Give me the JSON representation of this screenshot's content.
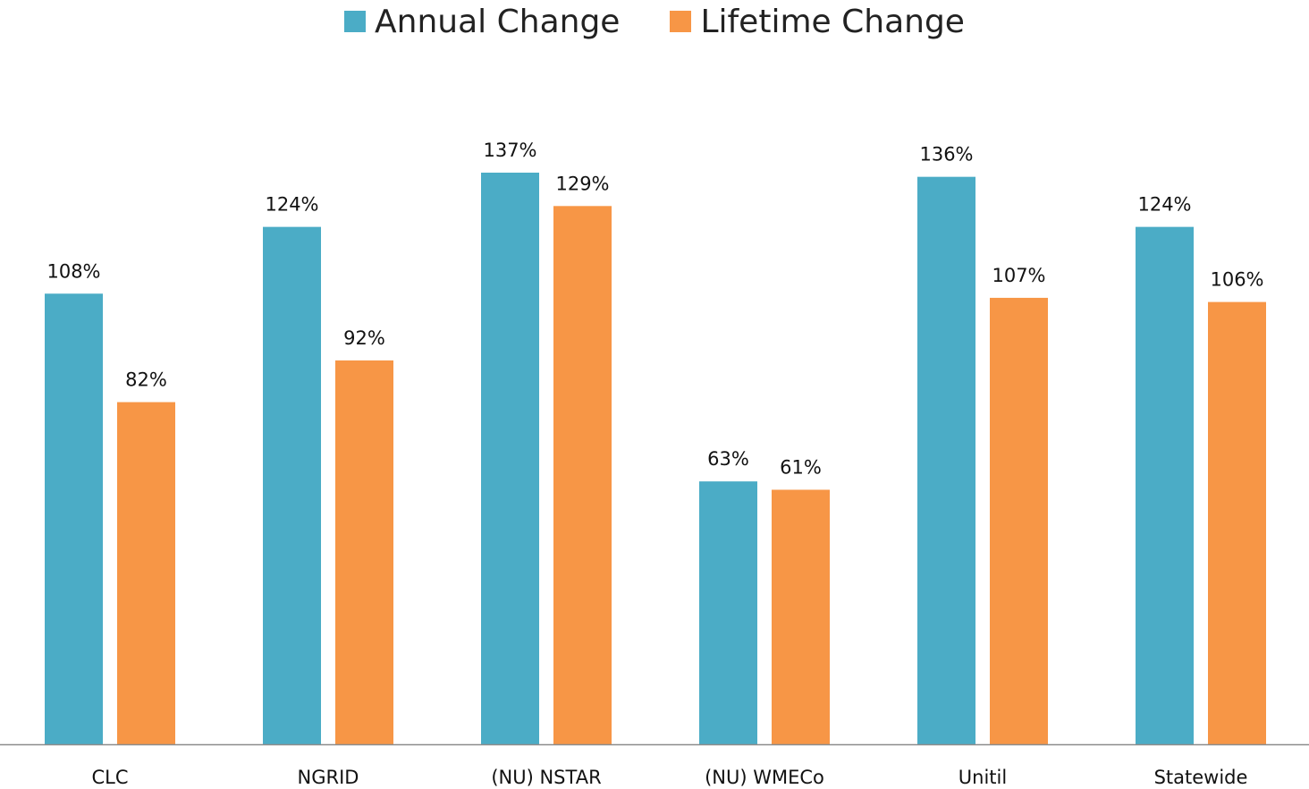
{
  "chart_data": {
    "type": "bar",
    "title": "",
    "xlabel": "",
    "ylabel": "",
    "categories": [
      "CLC",
      "NGRID",
      "(NU) NSTAR",
      "(NU) WMECo",
      "Unitil",
      "Statewide"
    ],
    "series": [
      {
        "name": "Annual Change",
        "color": "#4BACC6",
        "values": [
          108,
          124,
          137,
          63,
          136,
          124
        ],
        "labels": [
          "108%",
          "124%",
          "137%",
          "63%",
          "136%",
          "124%"
        ]
      },
      {
        "name": "Lifetime Change",
        "color": "#F79646",
        "values": [
          82,
          92,
          129,
          61,
          107,
          106
        ],
        "labels": [
          "82%",
          "92%",
          "129%",
          "61%",
          "107%",
          "106%"
        ]
      }
    ],
    "ylim": [
      0,
      137
    ],
    "grid": false,
    "legend_position": "top-center",
    "value_suffix": "%"
  }
}
